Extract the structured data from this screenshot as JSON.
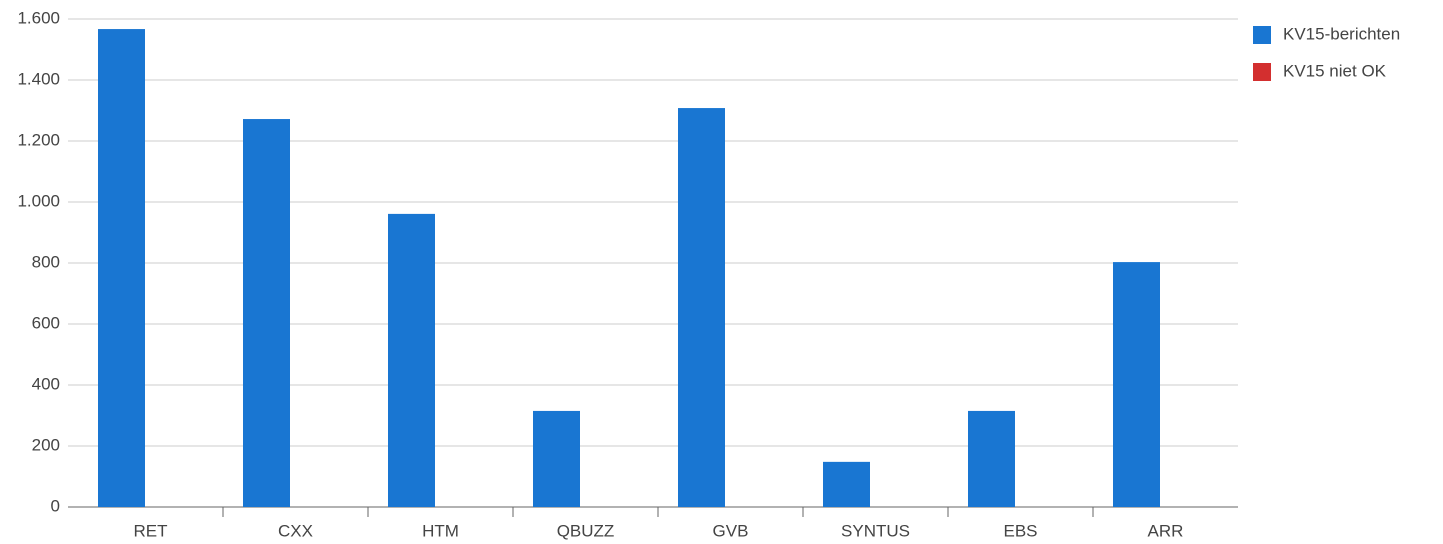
{
  "chart_data": {
    "type": "bar",
    "categories": [
      "RET",
      "CXX",
      "HTM",
      "QBUZZ",
      "GVB",
      "SYNTUS",
      "EBS",
      "ARR"
    ],
    "series": [
      {
        "name": "KV15-berichten",
        "color": "#1976d2",
        "values": [
          1567,
          1272,
          961,
          315,
          1308,
          148,
          315,
          803
        ]
      },
      {
        "name": "KV15 niet OK",
        "color": "#d32f2f",
        "values": [
          0,
          0,
          0,
          0,
          0,
          0,
          0,
          0
        ]
      }
    ],
    "ylim": [
      0,
      1600
    ],
    "yticks": [
      0,
      200,
      400,
      600,
      800,
      {
        "value": 1000,
        "label": "1.000"
      },
      {
        "value": 1200,
        "label": "1.200"
      },
      {
        "value": 1400,
        "label": "1.400"
      },
      {
        "value": 1600,
        "label": "1.600"
      }
    ],
    "grid": true,
    "legend": "right"
  }
}
